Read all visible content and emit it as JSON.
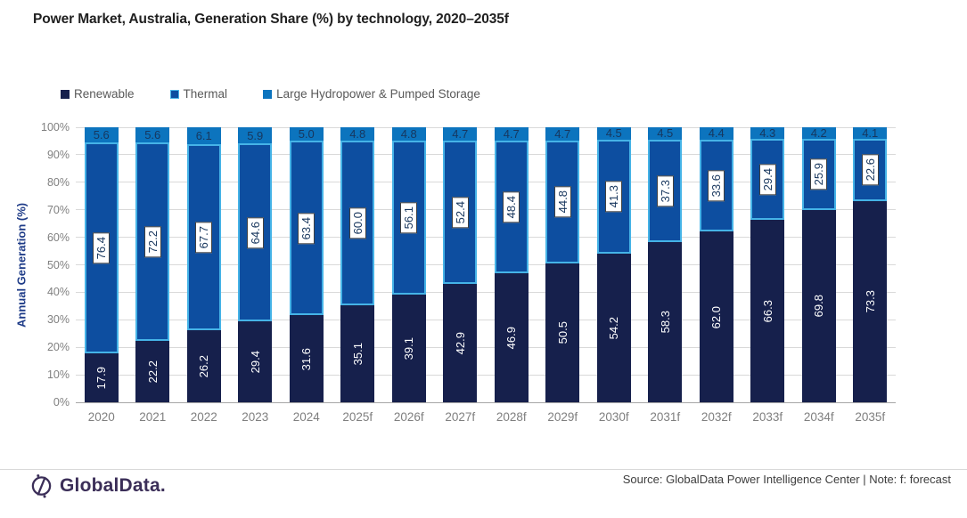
{
  "title": "Power Market, Australia, Generation Share (%) by technology, 2020–2035f",
  "chart_data": {
    "type": "bar",
    "stacked": true,
    "title": "Power Market, Australia, Generation Share (%) by technology, 2020–2035f",
    "xlabel": "",
    "ylabel": "Annual Generation (%)",
    "ylim": [
      0,
      100
    ],
    "grid": true,
    "legend_position": "top",
    "yticks": [
      "0%",
      "10%",
      "20%",
      "30%",
      "40%",
      "50%",
      "60%",
      "70%",
      "80%",
      "90%",
      "100%"
    ],
    "categories": [
      "2020",
      "2021",
      "2022",
      "2023",
      "2024",
      "2025f",
      "2026f",
      "2027f",
      "2028f",
      "2029f",
      "2030f",
      "2031f",
      "2032f",
      "2033f",
      "2034f",
      "2035f"
    ],
    "series": [
      {
        "name": "Renewable",
        "color": "#16204C",
        "label_style": "white-rotated",
        "values": [
          17.9,
          22.2,
          26.2,
          29.4,
          31.6,
          35.1,
          39.1,
          42.9,
          46.9,
          50.5,
          54.2,
          58.3,
          62.0,
          66.3,
          69.8,
          73.3
        ]
      },
      {
        "name": "Thermal",
        "color": "#0D4EA0",
        "border_color": "#45B3E7",
        "label_style": "boxed-rotated",
        "values": [
          76.4,
          72.2,
          67.7,
          64.6,
          63.4,
          60.0,
          56.1,
          52.4,
          48.4,
          44.8,
          41.3,
          37.3,
          33.6,
          29.4,
          25.9,
          22.6
        ]
      },
      {
        "name": "Large Hydropower & Pumped Storage",
        "color": "#0C74BE",
        "label_style": "top-dark",
        "values": [
          5.6,
          5.6,
          6.1,
          5.9,
          5.0,
          4.8,
          4.8,
          4.7,
          4.7,
          4.7,
          4.5,
          4.5,
          4.4,
          4.3,
          4.2,
          4.1
        ]
      }
    ]
  },
  "colors": {
    "renewable": "#16204C",
    "thermal": "#0D4EA0",
    "thermal_border": "#45B3E7",
    "hydro": "#0C74BE",
    "axis_title": "#1F3C88",
    "tick_text": "#808080",
    "brand_purple": "#3B2E58"
  },
  "footer": {
    "brand": "GlobalData.",
    "source": "Source: GlobalData Power Intelligence Center | Note: f: forecast"
  }
}
